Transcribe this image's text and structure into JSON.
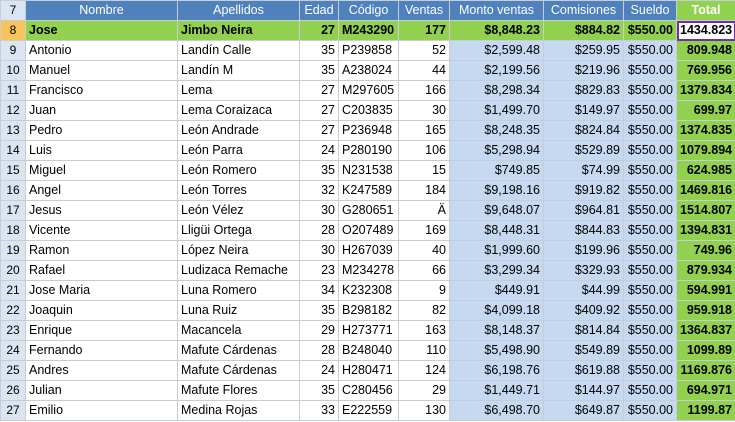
{
  "header": {
    "row_number": "7",
    "columns": [
      "Nombre",
      "Apellidos",
      "Edad",
      "Código",
      "Ventas",
      "Monto ventas",
      "Comisiones",
      "Sueldo",
      "Total"
    ]
  },
  "rows": [
    {
      "n": "8",
      "nombre": "Jose",
      "apellidos": "Jimbo Neira",
      "edad": "27",
      "codigo": "M243290",
      "ventas": "177",
      "monto": "$8,848.23",
      "comisiones": "$884.82",
      "sueldo": "$550.00",
      "total": "1434.823"
    },
    {
      "n": "9",
      "nombre": "Antonio",
      "apellidos": "Landín Calle",
      "edad": "35",
      "codigo": "P239858",
      "ventas": "52",
      "monto": "$2,599.48",
      "comisiones": "$259.95",
      "sueldo": "$550.00",
      "total": "809.948"
    },
    {
      "n": "10",
      "nombre": "Manuel",
      "apellidos": "Landín M",
      "edad": "35",
      "codigo": "A238024",
      "ventas": "44",
      "monto": "$2,199.56",
      "comisiones": "$219.96",
      "sueldo": "$550.00",
      "total": "769.956"
    },
    {
      "n": "11",
      "nombre": "Francisco",
      "apellidos": "Lema",
      "edad": "27",
      "codigo": "M297605",
      "ventas": "166",
      "monto": "$8,298.34",
      "comisiones": "$829.83",
      "sueldo": "$550.00",
      "total": "1379.834"
    },
    {
      "n": "12",
      "nombre": "Juan",
      "apellidos": "Lema Coraizaca",
      "edad": "27",
      "codigo": "C203835",
      "ventas": "30",
      "monto": "$1,499.70",
      "comisiones": "$149.97",
      "sueldo": "$550.00",
      "total": "699.97"
    },
    {
      "n": "13",
      "nombre": "Pedro",
      "apellidos": "León Andrade",
      "edad": "27",
      "codigo": "P236948",
      "ventas": "165",
      "monto": "$8,248.35",
      "comisiones": "$824.84",
      "sueldo": "$550.00",
      "total": "1374.835"
    },
    {
      "n": "14",
      "nombre": "Luis",
      "apellidos": "León Parra",
      "edad": "24",
      "codigo": "P280190",
      "ventas": "106",
      "monto": "$5,298.94",
      "comisiones": "$529.89",
      "sueldo": "$550.00",
      "total": "1079.894"
    },
    {
      "n": "15",
      "nombre": "Miguel",
      "apellidos": "León Romero",
      "edad": "35",
      "codigo": "N231538",
      "ventas": "15",
      "monto": "$749.85",
      "comisiones": "$74.99",
      "sueldo": "$550.00",
      "total": "624.985"
    },
    {
      "n": "16",
      "nombre": "Angel",
      "apellidos": "León Torres",
      "edad": "32",
      "codigo": "K247589",
      "ventas": "184",
      "monto": "$9,198.16",
      "comisiones": "$919.82",
      "sueldo": "$550.00",
      "total": "1469.816"
    },
    {
      "n": "17",
      "nombre": "Jesus",
      "apellidos": "León Vélez",
      "edad": "30",
      "codigo": "G280651",
      "ventas": "Ä",
      "monto": "$9,648.07",
      "comisiones": "$964.81",
      "sueldo": "$550.00",
      "total": "1514.807"
    },
    {
      "n": "18",
      "nombre": "Vicente",
      "apellidos": "Lligüi Ortega",
      "edad": "28",
      "codigo": "O207489",
      "ventas": "169",
      "monto": "$8,448.31",
      "comisiones": "$844.83",
      "sueldo": "$550.00",
      "total": "1394.831"
    },
    {
      "n": "19",
      "nombre": "Ramon",
      "apellidos": "López Neira",
      "edad": "30",
      "codigo": "H267039",
      "ventas": "40",
      "monto": "$1,999.60",
      "comisiones": "$199.96",
      "sueldo": "$550.00",
      "total": "749.96"
    },
    {
      "n": "20",
      "nombre": "Rafael",
      "apellidos": "Ludizaca Remache",
      "edad": "23",
      "codigo": "M234278",
      "ventas": "66",
      "monto": "$3,299.34",
      "comisiones": "$329.93",
      "sueldo": "$550.00",
      "total": "879.934"
    },
    {
      "n": "21",
      "nombre": "Jose Maria",
      "apellidos": "Luna Romero",
      "edad": "34",
      "codigo": "K232308",
      "ventas": "9",
      "monto": "$449.91",
      "comisiones": "$44.99",
      "sueldo": "$550.00",
      "total": "594.991"
    },
    {
      "n": "22",
      "nombre": "Joaquin",
      "apellidos": "Luna Ruiz",
      "edad": "35",
      "codigo": "B298182",
      "ventas": "82",
      "monto": "$4,099.18",
      "comisiones": "$409.92",
      "sueldo": "$550.00",
      "total": "959.918"
    },
    {
      "n": "23",
      "nombre": "Enrique",
      "apellidos": "Macancela",
      "edad": "29",
      "codigo": "H273771",
      "ventas": "163",
      "monto": "$8,148.37",
      "comisiones": "$814.84",
      "sueldo": "$550.00",
      "total": "1364.837"
    },
    {
      "n": "24",
      "nombre": "Fernando",
      "apellidos": "Mafute Cárdenas",
      "edad": "28",
      "codigo": "B248040",
      "ventas": "110",
      "monto": "$5,498.90",
      "comisiones": "$549.89",
      "sueldo": "$550.00",
      "total": "1099.89"
    },
    {
      "n": "25",
      "nombre": "Andres",
      "apellidos": "Mafute Cárdenas",
      "edad": "24",
      "codigo": "H280471",
      "ventas": "124",
      "monto": "$6,198.76",
      "comisiones": "$619.88",
      "sueldo": "$550.00",
      "total": "1169.876"
    },
    {
      "n": "26",
      "nombre": "Julian",
      "apellidos": "Mafute Flores",
      "edad": "35",
      "codigo": "C280456",
      "ventas": "29",
      "monto": "$1,449.71",
      "comisiones": "$144.97",
      "sueldo": "$550.00",
      "total": "694.971"
    },
    {
      "n": "27",
      "nombre": "Emilio",
      "apellidos": "Medina Rojas",
      "edad": "33",
      "codigo": "E222559",
      "ventas": "130",
      "monto": "$6,498.70",
      "comisiones": "$649.87",
      "sueldo": "$550.00",
      "total": "1199.87"
    }
  ],
  "colors": {
    "header_blue": "#4f81bd",
    "highlight_green": "#92d050",
    "money_blue": "#c5d9f1",
    "active_cell_border": "#7030a0"
  }
}
